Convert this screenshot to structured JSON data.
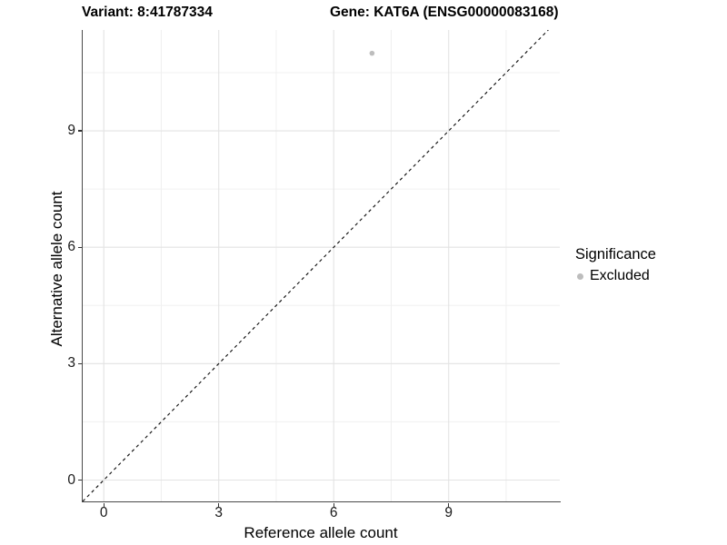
{
  "page": {
    "background": "#ffffff"
  },
  "chart_data": {
    "type": "scatter",
    "titles": {
      "left": "Variant: 8:41787334",
      "right": "Gene: KAT6A (ENSG00000083168)"
    },
    "xlabel": "Reference allele count",
    "ylabel": "Alternative allele count",
    "x_ticks": [
      0,
      3,
      6,
      9
    ],
    "y_ticks": [
      0,
      3,
      6,
      9
    ],
    "x_minor_ticks": [
      1.5,
      4.5,
      7.5,
      10.5
    ],
    "y_minor_ticks": [
      1.5,
      4.5,
      7.5,
      10.5
    ],
    "xlim": [
      -0.55,
      11.9
    ],
    "ylim": [
      -0.55,
      11.6
    ],
    "grid": true,
    "series": [
      {
        "name": "Excluded",
        "color": "#bdbdbd",
        "points": [
          {
            "x": 7,
            "y": 11
          }
        ]
      }
    ],
    "reference_line": {
      "kind": "identity",
      "equation": "y = x",
      "style": "dashed",
      "color": "#111111"
    },
    "legend": {
      "title": "Significance",
      "position": "right",
      "items": [
        {
          "label": "Excluded",
          "color": "#bdbdbd"
        }
      ]
    },
    "colors": {
      "grid_major": "#e3e3e3",
      "grid_minor": "#f0f0f0",
      "axis_line": "#4a4a4a",
      "tick_mark": "#333333",
      "tick_text": "#1a1a1a"
    }
  }
}
